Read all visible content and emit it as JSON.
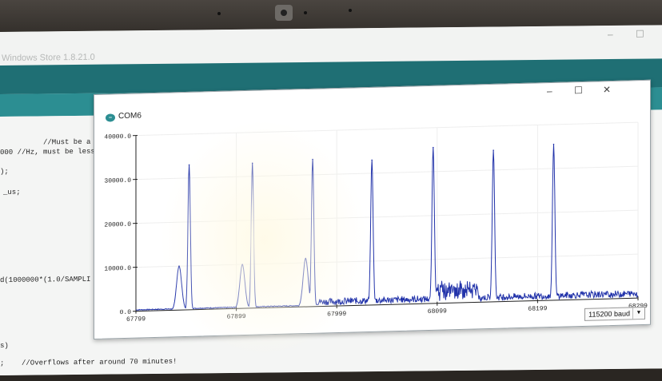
{
  "ide": {
    "title": "Windows Store 1.8.21.0",
    "code_lines": [
      "//Must be a power",
      "000 //Hz, must be less",
      ");",
      "_us;",
      "d(1000000*(1.0/SAMPLI",
      "s)",
      ";    //Overflows after around 70 minutes!"
    ]
  },
  "serial_plotter": {
    "title": "COM6",
    "icon": "arduino-logo",
    "controls": {
      "minimize": "–",
      "maximize": "☐",
      "close": "✕"
    },
    "baud": "115200 baud"
  },
  "chart_data": {
    "type": "line",
    "xlim": [
      67799,
      68299
    ],
    "ylim": [
      0,
      40000
    ],
    "y_ticks": [
      "0.0",
      "10000.0",
      "20000.0",
      "30000.0",
      "40000.0"
    ],
    "x_ticks": [
      "67799",
      "67899",
      "67999",
      "68099",
      "68199",
      "68299"
    ],
    "peaks_x": [
      67842,
      67852,
      67905,
      67915,
      67968,
      67975,
      68034,
      68095,
      68155,
      68215
    ],
    "peaks_y": [
      10000,
      33000,
      10000,
      33000,
      11000,
      33500,
      33000,
      35500,
      34500,
      35500
    ],
    "grid": true,
    "series_color": "#2233aa"
  }
}
